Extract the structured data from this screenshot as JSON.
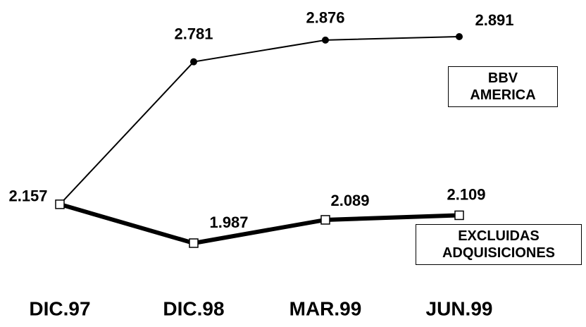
{
  "chart_data": {
    "type": "line",
    "categories": [
      "DIC.97",
      "DIC.98",
      "MAR.99",
      "JUN.99"
    ],
    "series": [
      {
        "name": "BBV AMERICA",
        "color": "#000000",
        "values": [
          2.157,
          2.781,
          2.876,
          2.891
        ]
      },
      {
        "name": "EXCLUIDAS ADQUISICIONES",
        "color": "#000000",
        "values": [
          2.157,
          1.987,
          2.089,
          2.109
        ]
      }
    ]
  }
}
